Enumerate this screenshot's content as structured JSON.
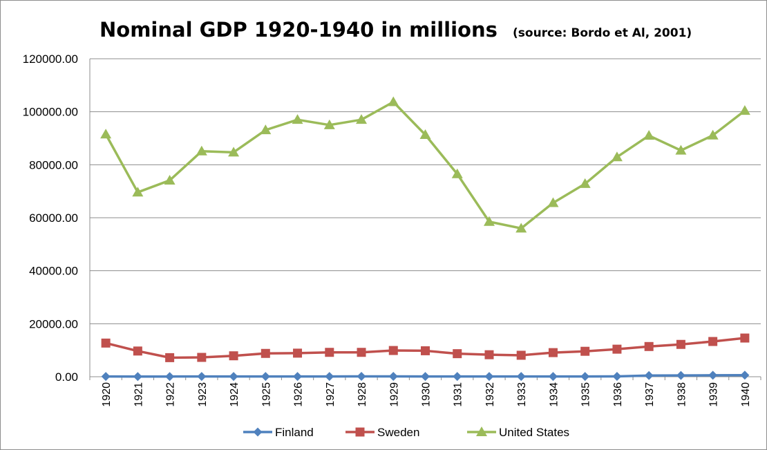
{
  "chart_data": {
    "type": "line",
    "title": "Nominal GDP 1920-1940 in millions",
    "subtitle": "(source: Bordo et Al, 2001)",
    "xlabel": "",
    "ylabel": "",
    "categories": [
      "1920",
      "1921",
      "1922",
      "1923",
      "1924",
      "1925",
      "1926",
      "1927",
      "1928",
      "1929",
      "1930",
      "1931",
      "1932",
      "1933",
      "1934",
      "1935",
      "1936",
      "1937",
      "1938",
      "1939",
      "1940"
    ],
    "ylim": [
      0,
      120000
    ],
    "yticks": [
      "0.00",
      "20000.00",
      "40000.00",
      "60000.00",
      "80000.00",
      "100000.00",
      "120000.00"
    ],
    "grid": "horizontal",
    "legend_position": "bottom",
    "series": [
      {
        "name": "Finland",
        "color": "#4f81bd",
        "marker": "diamond",
        "values": [
          100,
          80,
          80,
          90,
          90,
          100,
          100,
          110,
          120,
          120,
          110,
          100,
          90,
          90,
          100,
          110,
          120,
          450,
          500,
          550,
          600
        ]
      },
      {
        "name": "Sweden",
        "color": "#c0504d",
        "marker": "square",
        "values": [
          12700,
          9700,
          7200,
          7300,
          7900,
          8800,
          8900,
          9200,
          9200,
          9900,
          9800,
          8700,
          8300,
          8100,
          9100,
          9600,
          10400,
          11400,
          12200,
          13300,
          14600
        ]
      },
      {
        "name": "United States",
        "color": "#9bbb59",
        "marker": "triangle",
        "values": [
          91500,
          69600,
          74100,
          85100,
          84700,
          93100,
          97000,
          95000,
          97000,
          103700,
          91300,
          76500,
          58500,
          56000,
          65600,
          72800,
          82900,
          91000,
          85400,
          91100,
          100400
        ]
      }
    ]
  }
}
